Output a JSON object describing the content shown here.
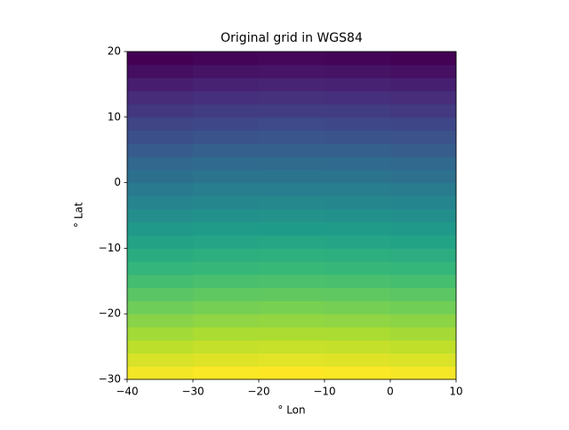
{
  "chart_data": {
    "type": "heatmap",
    "title": "Original grid in WGS84",
    "xlabel": "° Lon",
    "ylabel": "° Lat",
    "x_edges": [
      -40,
      -30,
      -20,
      -10,
      0,
      10
    ],
    "y_edges": [
      -30,
      -28,
      -26,
      -24,
      -22,
      -20,
      -18,
      -16,
      -14,
      -12,
      -10,
      -8,
      -6,
      -4,
      -2,
      0,
      2,
      4,
      6,
      8,
      10,
      12,
      14,
      16,
      18,
      20
    ],
    "z": [
      [
        24,
        24.3,
        24.4,
        24.3,
        24.1
      ],
      [
        23,
        23.3,
        23.4,
        23.3,
        23.1
      ],
      [
        22,
        22.3,
        22.4,
        22.3,
        22.1
      ],
      [
        21,
        21.3,
        21.4,
        21.3,
        21.1
      ],
      [
        20,
        20.3,
        20.4,
        20.3,
        20.1
      ],
      [
        19,
        19.3,
        19.4,
        19.3,
        19.1
      ],
      [
        18,
        18.3,
        18.4,
        18.3,
        18.1
      ],
      [
        17,
        17.3,
        17.4,
        17.3,
        17.1
      ],
      [
        16,
        16.3,
        16.4,
        16.3,
        16.1
      ],
      [
        15,
        15.3,
        15.4,
        15.3,
        15.1
      ],
      [
        14,
        14.3,
        14.4,
        14.3,
        14.1
      ],
      [
        13,
        13.3,
        13.4,
        13.3,
        13.1
      ],
      [
        12,
        12.3,
        12.4,
        12.3,
        12.1
      ],
      [
        11,
        11.3,
        11.4,
        11.3,
        11.1
      ],
      [
        10,
        10.3,
        10.4,
        10.3,
        10.1
      ],
      [
        9,
        9.3,
        9.4,
        9.3,
        9.1
      ],
      [
        8,
        8.3,
        8.4,
        8.3,
        8.1
      ],
      [
        7,
        7.3,
        7.4,
        7.3,
        7.1
      ],
      [
        6,
        6.3,
        6.4,
        6.3,
        6.1
      ],
      [
        5,
        5.3,
        5.4,
        5.3,
        5.1
      ],
      [
        4,
        4.3,
        4.4,
        4.3,
        4.1
      ],
      [
        3,
        3.3,
        3.4,
        3.3,
        3.1
      ],
      [
        2,
        2.3,
        2.4,
        2.3,
        2.1
      ],
      [
        1,
        1.3,
        1.4,
        1.3,
        1.1
      ],
      [
        0,
        0.3,
        0.4,
        0.3,
        0.1
      ]
    ],
    "colormap": "viridis",
    "xlim": [
      -40,
      10
    ],
    "ylim": [
      -30,
      20
    ],
    "xticks": [
      {
        "value": -40,
        "label": "−40"
      },
      {
        "value": -30,
        "label": "−30"
      },
      {
        "value": -20,
        "label": "−20"
      },
      {
        "value": -10,
        "label": "−10"
      },
      0,
      10
    ],
    "yticks": [
      {
        "value": -30,
        "label": "−30"
      },
      {
        "value": -20,
        "label": "−20"
      },
      {
        "value": -10,
        "label": "−10"
      },
      0,
      10,
      20
    ]
  }
}
